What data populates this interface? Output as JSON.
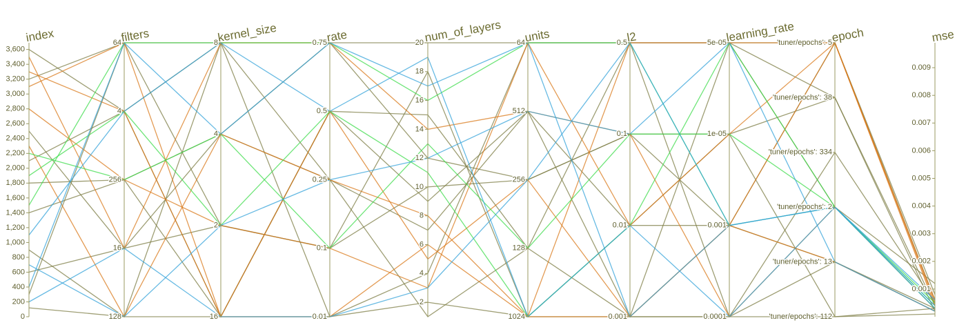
{
  "chart_data": {
    "type": "parallel",
    "dimensions": [
      {
        "name": "index",
        "ylim": [
          0,
          3690
        ],
        "yticks": [
          0,
          200,
          400,
          600,
          800,
          {
            "value": 1000,
            "label": "1,000"
          },
          {
            "value": 1200,
            "label": "1,200"
          },
          {
            "value": 1400,
            "label": "1,400"
          },
          {
            "value": 1600,
            "label": "1,600"
          },
          {
            "value": 1800,
            "label": "1,800"
          },
          {
            "value": 2000,
            "label": "2,000"
          },
          {
            "value": 2200,
            "label": "2,200"
          },
          {
            "value": 2400,
            "label": "2,400"
          },
          {
            "value": 2600,
            "label": "2,600"
          },
          {
            "value": 2800,
            "label": "2,800"
          },
          {
            "value": 3000,
            "label": "3,000"
          },
          {
            "value": 3200,
            "label": "3,200"
          },
          {
            "value": 3400,
            "label": "3,400"
          },
          {
            "value": 3600,
            "label": "3,600"
          }
        ]
      },
      {
        "name": "filters",
        "categories": [
          "128",
          "16",
          "256",
          "4",
          "64"
        ]
      },
      {
        "name": "kernel_size",
        "categories": [
          "16",
          "2",
          "4",
          "8"
        ]
      },
      {
        "name": "rate",
        "categories": [
          "0.01",
          "0.1",
          "0.25",
          "0.5",
          "0.75"
        ]
      },
      {
        "name": "num_of_layers",
        "ylim": [
          1,
          20
        ],
        "yticks": [
          2,
          4,
          6,
          8,
          10,
          12,
          14,
          16,
          18,
          20
        ]
      },
      {
        "name": "units",
        "categories": [
          "1024",
          "128",
          "256",
          "512",
          "64"
        ]
      },
      {
        "name": "l2",
        "categories": [
          "0.001",
          "0.01",
          "0.1",
          "0.5"
        ]
      },
      {
        "name": "learning_rate",
        "categories": [
          "0.0001",
          "0.001",
          "1e-05",
          "5e-05"
        ]
      },
      {
        "name": "epoch",
        "categories": [
          "'tuner/epochs': 112",
          "'tuner/epochs': 13",
          "'tuner/epochs': 2",
          "'tuner/epochs': 334",
          "'tuner/epochs': 38",
          "'tuner/epochs': 5"
        ]
      },
      {
        "name": "mse",
        "ylim": [
          0,
          0.0099
        ],
        "yticks": [
          0.001,
          0.002,
          0.003,
          0.004,
          0.005,
          0.006,
          0.007,
          0.008,
          0.009
        ]
      }
    ],
    "rows": [
      {
        "color": "#7d7d45",
        "values": [
          120,
          "128",
          "16",
          "0.01",
          2,
          "1024",
          "0.001",
          "0.0001",
          "'tuner/epochs': 112",
          0.0003
        ]
      },
      {
        "color": "#7d7d45",
        "values": [
          300,
          "64",
          "8",
          "0.75",
          20,
          "64",
          "0.5",
          "5e-05",
          "'tuner/epochs': 5",
          0.0006
        ]
      },
      {
        "color": "#7d7d45",
        "values": [
          2500,
          "16",
          "2",
          "0.1",
          10,
          "256",
          "0.1",
          "1e-05",
          "'tuner/epochs': 38",
          0.0004
        ]
      },
      {
        "color": "#7d7d45",
        "values": [
          1800,
          "256",
          "4",
          "0.25",
          7,
          "512",
          "0.01",
          "0.001",
          "'tuner/epochs': 13",
          0.0002
        ]
      },
      {
        "color": "#7d7d45",
        "values": [
          3600,
          "4",
          "16",
          "0.5",
          15,
          "128",
          "0.001",
          "0.0001",
          "'tuner/epochs': 334",
          0.0005
        ]
      },
      {
        "color": "#7d7d45",
        "values": [
          900,
          "128",
          "8",
          "0.01",
          4,
          "64",
          "0.5",
          "5e-05",
          "'tuner/epochs': 2",
          0.0012
        ]
      },
      {
        "color": "#7d7d45",
        "values": [
          3200,
          "64",
          "2",
          "0.1",
          18,
          "1024",
          "0.01",
          "1e-05",
          "'tuner/epochs': 112",
          0.0001
        ]
      },
      {
        "color": "#7d7d45",
        "values": [
          600,
          "16",
          "4",
          "0.75",
          12,
          "256",
          "0.1",
          "0.001",
          "'tuner/epochs': 5",
          0.0008
        ]
      },
      {
        "color": "#7d7d45",
        "values": [
          2100,
          "4",
          "8",
          "0.25",
          1,
          "128",
          "0.5",
          "0.0001",
          "'tuner/epochs': 13",
          0.0003
        ]
      },
      {
        "color": "#7d7d45",
        "values": [
          1400,
          "256",
          "16",
          "0.5",
          9,
          "512",
          "0.001",
          "5e-05",
          "'tuner/epochs': 38",
          0.0002
        ]
      },
      {
        "color": "#d9791b",
        "values": [
          3100,
          "64",
          "16",
          "0.01",
          6,
          "1024",
          "0.001",
          "0.001",
          "'tuner/epochs': 5",
          0.0004
        ]
      },
      {
        "color": "#d9791b",
        "values": [
          2800,
          "256",
          "2",
          "0.1",
          3,
          "64",
          "0.01",
          "1e-05",
          "'tuner/epochs': 5",
          0.0006
        ]
      },
      {
        "color": "#d9791b",
        "values": [
          3500,
          "16",
          "8",
          "0.75",
          14,
          "512",
          "0.1",
          "0.0001",
          "'tuner/epochs': 2",
          0.0003
        ]
      },
      {
        "color": "#d9791b",
        "values": [
          2300,
          "128",
          "4",
          "0.25",
          8,
          "1024",
          "0.5",
          "5e-05",
          "'tuner/epochs': 5",
          0.0005
        ]
      },
      {
        "color": "#d9791b",
        "values": [
          3300,
          "4",
          "16",
          "0.5",
          5,
          "256",
          "0.001",
          "0.001",
          "'tuner/epochs': 13",
          0.0002
        ]
      },
      {
        "color": "#3fdc4c",
        "values": [
          1900,
          "4",
          "2",
          "0.5",
          11,
          "1024",
          "0.01",
          "5e-05",
          "'tuner/epochs': 2",
          0.0003
        ]
      },
      {
        "color": "#3fdc4c",
        "values": [
          1500,
          "64",
          "8",
          "0.75",
          16,
          "64",
          "0.5",
          "0.001",
          "'tuner/epochs': 2",
          0.0005
        ]
      },
      {
        "color": "#3fdc4c",
        "values": [
          2200,
          "256",
          "4",
          "0.1",
          13,
          "128",
          "0.1",
          "1e-05",
          "'tuner/epochs': 2",
          0.0004
        ]
      },
      {
        "color": "#34a3d9",
        "values": [
          400,
          "64",
          "4",
          "0.75",
          17,
          "64",
          "0.001",
          "0.001",
          "'tuner/epochs': 2",
          0.0003
        ]
      },
      {
        "color": "#34a3d9",
        "values": [
          1100,
          "4",
          "8",
          "0.5",
          19,
          "1024",
          "0.01",
          "0.0001",
          "'tuner/epochs': 2",
          0.0006
        ]
      },
      {
        "color": "#34a3d9",
        "values": [
          700,
          "128",
          "2",
          "0.25",
          12,
          "512",
          "0.1",
          "5e-05",
          "'tuner/epochs': 13",
          0.0002
        ]
      },
      {
        "color": "#34a3d9",
        "values": [
          200,
          "16",
          "16",
          "0.01",
          3,
          "256",
          "0.5",
          "0.001",
          "'tuner/epochs': 2",
          0.0004
        ]
      }
    ]
  }
}
